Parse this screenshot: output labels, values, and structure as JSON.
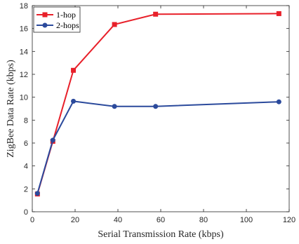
{
  "chart_data": {
    "type": "line",
    "title": "",
    "xlabel": "Serial Transmission Rate (kbps)",
    "ylabel": "ZigBee Data Rate (kbps)",
    "xlim": [
      0,
      120
    ],
    "ylim": [
      0,
      18
    ],
    "xticks": [
      0,
      20,
      40,
      60,
      80,
      100,
      120
    ],
    "yticks": [
      0,
      2,
      4,
      6,
      8,
      10,
      12,
      14,
      16,
      18
    ],
    "grid": false,
    "legend": "top-left",
    "series": [
      {
        "name": "1-hop",
        "color": "#e8202a",
        "marker": "square",
        "x": [
          2.4,
          9.6,
          19.2,
          38.4,
          57.6,
          115.2
        ],
        "y": [
          1.55,
          6.15,
          12.35,
          16.35,
          17.25,
          17.3
        ]
      },
      {
        "name": "2-hops",
        "color": "#2b4a9c",
        "marker": "circle",
        "x": [
          2.4,
          9.6,
          19.2,
          38.4,
          57.6,
          115.2
        ],
        "y": [
          1.6,
          6.25,
          9.65,
          9.2,
          9.2,
          9.6
        ]
      }
    ]
  }
}
